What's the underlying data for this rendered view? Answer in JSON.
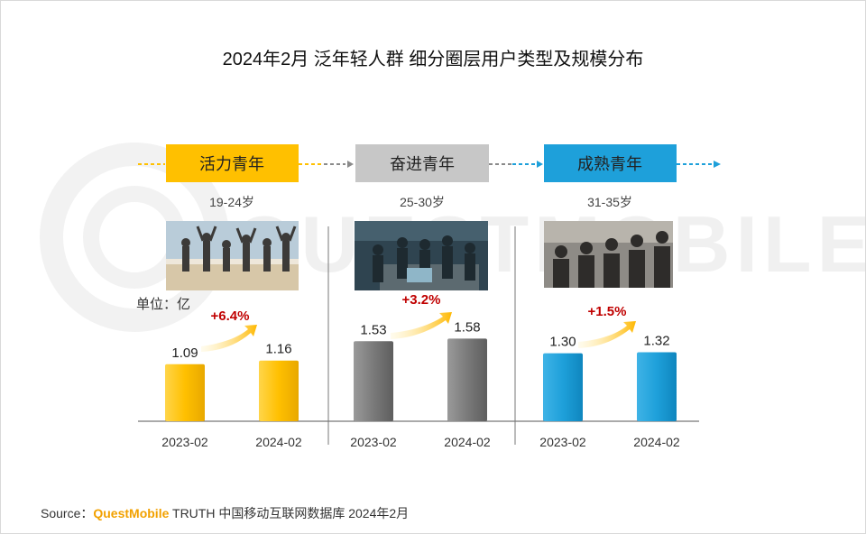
{
  "title": "2024年2月 泛年轻人群 细分圈层用户类型及规模分布",
  "watermark": "QUESTMOBILE",
  "unit_label": "单位：亿",
  "source": {
    "prefix": "Source：",
    "brand": "QuestMobile",
    "rest": " TRUTH 中国移动互联网数据库 2024年2月"
  },
  "colors": {
    "yellow": "#FFC000",
    "gray": "#7F7F7F",
    "blue": "#1EA0DA",
    "growth_text": "#C00000",
    "brand": "#F2A100"
  },
  "segments": [
    {
      "name": "活力青年",
      "age": "19-24岁",
      "growth": "+6.4%",
      "icon": "dancing-youth-photo"
    },
    {
      "name": "奋进青年",
      "age": "25-30岁",
      "growth": "+3.2%",
      "icon": "office-team-photo"
    },
    {
      "name": "成熟青年",
      "age": "31-35岁",
      "growth": "+1.5%",
      "icon": "seated-audience-photo"
    }
  ],
  "chart_data": {
    "type": "bar",
    "title": "2024年2月 泛年轻人群 细分圈层用户类型及规模分布",
    "ylabel": "单位：亿",
    "categories": [
      "2023-02",
      "2024-02"
    ],
    "series": [
      {
        "name": "活力青年",
        "values": [
          1.09,
          1.16
        ],
        "labels": [
          "1.09",
          "1.16"
        ]
      },
      {
        "name": "奋进青年",
        "values": [
          1.53,
          1.58
        ],
        "labels": [
          "1.53",
          "1.58"
        ]
      },
      {
        "name": "成熟青年",
        "values": [
          1.3,
          1.32
        ],
        "labels": [
          "1.30",
          "1.32"
        ]
      }
    ],
    "ylim": [
      0,
      2
    ],
    "grid": false
  }
}
